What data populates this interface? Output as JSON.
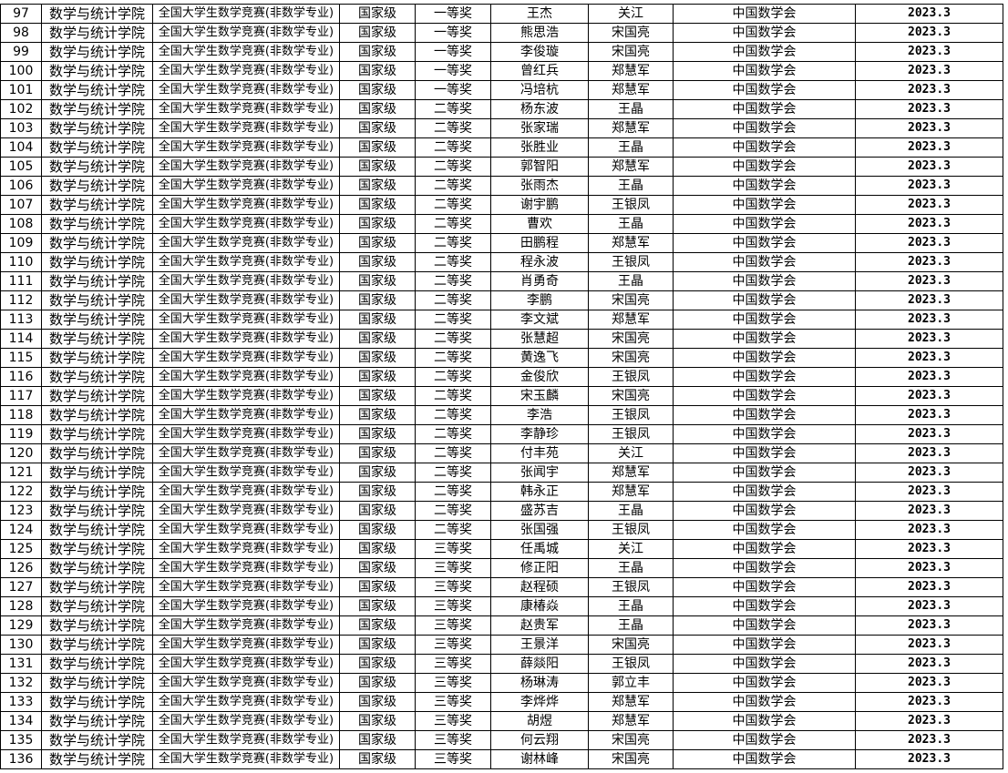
{
  "table": {
    "rows": [
      [
        "97",
        "数学与统计学院",
        "全国大学生数学竞赛(非数学专业)",
        "国家级",
        "一等奖",
        "王杰",
        "关江",
        "中国数学会",
        "2023.3"
      ],
      [
        "98",
        "数学与统计学院",
        "全国大学生数学竞赛(非数学专业)",
        "国家级",
        "一等奖",
        "熊思浩",
        "宋国亮",
        "中国数学会",
        "2023.3"
      ],
      [
        "99",
        "数学与统计学院",
        "全国大学生数学竞赛(非数学专业)",
        "国家级",
        "一等奖",
        "李俊璇",
        "宋国亮",
        "中国数学会",
        "2023.3"
      ],
      [
        "100",
        "数学与统计学院",
        "全国大学生数学竞赛(非数学专业)",
        "国家级",
        "一等奖",
        "曾红兵",
        "郑慧军",
        "中国数学会",
        "2023.3"
      ],
      [
        "101",
        "数学与统计学院",
        "全国大学生数学竞赛(非数学专业)",
        "国家级",
        "一等奖",
        "冯培杭",
        "郑慧军",
        "中国数学会",
        "2023.3"
      ],
      [
        "102",
        "数学与统计学院",
        "全国大学生数学竞赛(非数学专业)",
        "国家级",
        "二等奖",
        "杨东波",
        "王晶",
        "中国数学会",
        "2023.3"
      ],
      [
        "103",
        "数学与统计学院",
        "全国大学生数学竞赛(非数学专业)",
        "国家级",
        "二等奖",
        "张家瑞",
        "郑慧军",
        "中国数学会",
        "2023.3"
      ],
      [
        "104",
        "数学与统计学院",
        "全国大学生数学竞赛(非数学专业)",
        "国家级",
        "二等奖",
        "张胜业",
        "王晶",
        "中国数学会",
        "2023.3"
      ],
      [
        "105",
        "数学与统计学院",
        "全国大学生数学竞赛(非数学专业)",
        "国家级",
        "二等奖",
        "郭智阳",
        "郑慧军",
        "中国数学会",
        "2023.3"
      ],
      [
        "106",
        "数学与统计学院",
        "全国大学生数学竞赛(非数学专业)",
        "国家级",
        "二等奖",
        "张雨杰",
        "王晶",
        "中国数学会",
        "2023.3"
      ],
      [
        "107",
        "数学与统计学院",
        "全国大学生数学竞赛(非数学专业)",
        "国家级",
        "二等奖",
        "谢宇鹏",
        "王银凤",
        "中国数学会",
        "2023.3"
      ],
      [
        "108",
        "数学与统计学院",
        "全国大学生数学竞赛(非数学专业)",
        "国家级",
        "二等奖",
        "曹欢",
        "王晶",
        "中国数学会",
        "2023.3"
      ],
      [
        "109",
        "数学与统计学院",
        "全国大学生数学竞赛(非数学专业)",
        "国家级",
        "二等奖",
        "田鹏程",
        "郑慧军",
        "中国数学会",
        "2023.3"
      ],
      [
        "110",
        "数学与统计学院",
        "全国大学生数学竞赛(非数学专业)",
        "国家级",
        "二等奖",
        "程永波",
        "王银凤",
        "中国数学会",
        "2023.3"
      ],
      [
        "111",
        "数学与统计学院",
        "全国大学生数学竞赛(非数学专业)",
        "国家级",
        "二等奖",
        "肖勇奇",
        "王晶",
        "中国数学会",
        "2023.3"
      ],
      [
        "112",
        "数学与统计学院",
        "全国大学生数学竞赛(非数学专业)",
        "国家级",
        "二等奖",
        "李鹏",
        "宋国亮",
        "中国数学会",
        "2023.3"
      ],
      [
        "113",
        "数学与统计学院",
        "全国大学生数学竞赛(非数学专业)",
        "国家级",
        "二等奖",
        "李文斌",
        "郑慧军",
        "中国数学会",
        "2023.3"
      ],
      [
        "114",
        "数学与统计学院",
        "全国大学生数学竞赛(非数学专业)",
        "国家级",
        "二等奖",
        "张慧超",
        "宋国亮",
        "中国数学会",
        "2023.3"
      ],
      [
        "115",
        "数学与统计学院",
        "全国大学生数学竞赛(非数学专业)",
        "国家级",
        "二等奖",
        "黄逸飞",
        "宋国亮",
        "中国数学会",
        "2023.3"
      ],
      [
        "116",
        "数学与统计学院",
        "全国大学生数学竞赛(非数学专业)",
        "国家级",
        "二等奖",
        "金俊欣",
        "王银凤",
        "中国数学会",
        "2023.3"
      ],
      [
        "117",
        "数学与统计学院",
        "全国大学生数学竞赛(非数学专业)",
        "国家级",
        "二等奖",
        "宋玉麟",
        "宋国亮",
        "中国数学会",
        "2023.3"
      ],
      [
        "118",
        "数学与统计学院",
        "全国大学生数学竞赛(非数学专业)",
        "国家级",
        "二等奖",
        "李浩",
        "王银凤",
        "中国数学会",
        "2023.3"
      ],
      [
        "119",
        "数学与统计学院",
        "全国大学生数学竞赛(非数学专业)",
        "国家级",
        "二等奖",
        "李静珍",
        "王银凤",
        "中国数学会",
        "2023.3"
      ],
      [
        "120",
        "数学与统计学院",
        "全国大学生数学竞赛(非数学专业)",
        "国家级",
        "二等奖",
        "付丰苑",
        "关江",
        "中国数学会",
        "2023.3"
      ],
      [
        "121",
        "数学与统计学院",
        "全国大学生数学竞赛(非数学专业)",
        "国家级",
        "二等奖",
        "张闻宇",
        "郑慧军",
        "中国数学会",
        "2023.3"
      ],
      [
        "122",
        "数学与统计学院",
        "全国大学生数学竞赛(非数学专业)",
        "国家级",
        "二等奖",
        "韩永正",
        "郑慧军",
        "中国数学会",
        "2023.3"
      ],
      [
        "123",
        "数学与统计学院",
        "全国大学生数学竞赛(非数学专业)",
        "国家级",
        "二等奖",
        "盛苏吉",
        "王晶",
        "中国数学会",
        "2023.3"
      ],
      [
        "124",
        "数学与统计学院",
        "全国大学生数学竞赛(非数学专业)",
        "国家级",
        "二等奖",
        "张国强",
        "王银凤",
        "中国数学会",
        "2023.3"
      ],
      [
        "125",
        "数学与统计学院",
        "全国大学生数学竞赛(非数学专业)",
        "国家级",
        "三等奖",
        "任禹城",
        "关江",
        "中国数学会",
        "2023.3"
      ],
      [
        "126",
        "数学与统计学院",
        "全国大学生数学竞赛(非数学专业)",
        "国家级",
        "三等奖",
        "修正阳",
        "王晶",
        "中国数学会",
        "2023.3"
      ],
      [
        "127",
        "数学与统计学院",
        "全国大学生数学竞赛(非数学专业)",
        "国家级",
        "三等奖",
        "赵程硕",
        "王银凤",
        "中国数学会",
        "2023.3"
      ],
      [
        "128",
        "数学与统计学院",
        "全国大学生数学竞赛(非数学专业)",
        "国家级",
        "三等奖",
        "康椿焱",
        "王晶",
        "中国数学会",
        "2023.3"
      ],
      [
        "129",
        "数学与统计学院",
        "全国大学生数学竞赛(非数学专业)",
        "国家级",
        "三等奖",
        "赵贵军",
        "王晶",
        "中国数学会",
        "2023.3"
      ],
      [
        "130",
        "数学与统计学院",
        "全国大学生数学竞赛(非数学专业)",
        "国家级",
        "三等奖",
        "王景洋",
        "宋国亮",
        "中国数学会",
        "2023.3"
      ],
      [
        "131",
        "数学与统计学院",
        "全国大学生数学竞赛(非数学专业)",
        "国家级",
        "三等奖",
        "薛燚阳",
        "王银凤",
        "中国数学会",
        "2023.3"
      ],
      [
        "132",
        "数学与统计学院",
        "全国大学生数学竞赛(非数学专业)",
        "国家级",
        "三等奖",
        "杨琳涛",
        "郭立丰",
        "中国数学会",
        "2023.3"
      ],
      [
        "133",
        "数学与统计学院",
        "全国大学生数学竞赛(非数学专业)",
        "国家级",
        "三等奖",
        "李烨烨",
        "郑慧军",
        "中国数学会",
        "2023.3"
      ],
      [
        "134",
        "数学与统计学院",
        "全国大学生数学竞赛(非数学专业)",
        "国家级",
        "三等奖",
        "胡煜",
        "郑慧军",
        "中国数学会",
        "2023.3"
      ],
      [
        "135",
        "数学与统计学院",
        "全国大学生数学竞赛(非数学专业)",
        "国家级",
        "三等奖",
        "何云翔",
        "宋国亮",
        "中国数学会",
        "2023.3"
      ],
      [
        "136",
        "数学与统计学院",
        "全国大学生数学竞赛(非数学专业)",
        "国家级",
        "三等奖",
        "谢林峰",
        "宋国亮",
        "中国数学会",
        "2023.3"
      ]
    ]
  }
}
